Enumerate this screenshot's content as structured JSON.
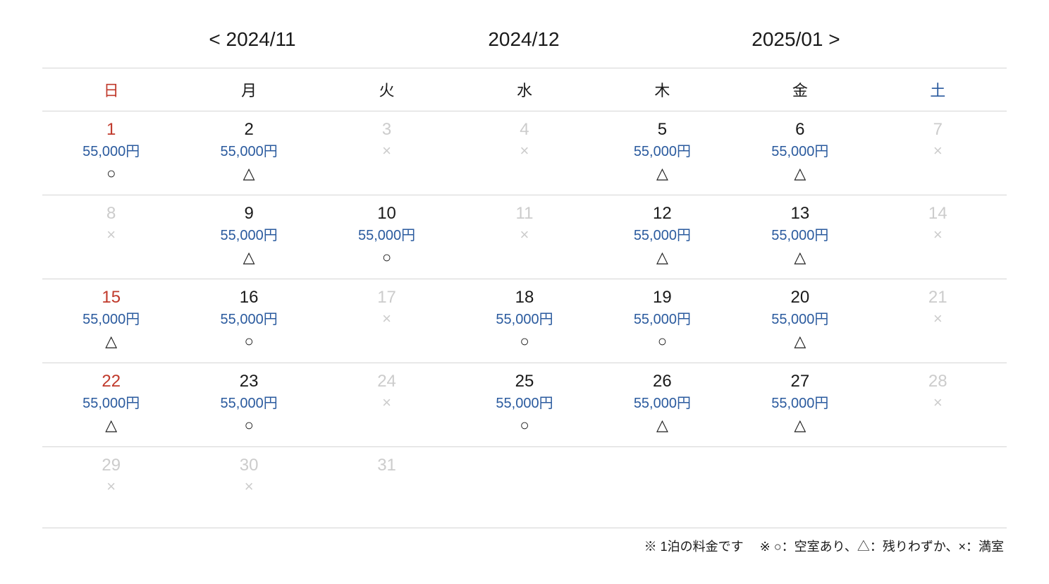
{
  "nav": {
    "prev": "< 2024/11",
    "current": "2024/12",
    "next": "2025/01 >"
  },
  "weekdays": [
    "日",
    "月",
    "火",
    "水",
    "木",
    "金",
    "土"
  ],
  "colors": {
    "sunday": "#c0392b",
    "saturday": "#2a5a9e",
    "price": "#2a5a9e",
    "text": "#1a1a1a",
    "disabled": "#cccccc",
    "border": "#d5d5d5",
    "background": "#ffffff"
  },
  "typography": {
    "nav_fontsize": 28,
    "weekday_fontsize": 22,
    "daynum_fontsize": 24,
    "price_fontsize": 20,
    "status_fontsize": 22,
    "legend_fontsize": 18
  },
  "weeks": [
    [
      {
        "num": "1",
        "price": "55,000円",
        "status": "○",
        "avail": true,
        "sun": true
      },
      {
        "num": "2",
        "price": "55,000円",
        "status": "△",
        "avail": true
      },
      {
        "num": "3",
        "price": "",
        "status": "×",
        "avail": false
      },
      {
        "num": "4",
        "price": "",
        "status": "×",
        "avail": false
      },
      {
        "num": "5",
        "price": "55,000円",
        "status": "△",
        "avail": true
      },
      {
        "num": "6",
        "price": "55,000円",
        "status": "△",
        "avail": true
      },
      {
        "num": "7",
        "price": "",
        "status": "×",
        "avail": false
      }
    ],
    [
      {
        "num": "8",
        "price": "",
        "status": "×",
        "avail": false
      },
      {
        "num": "9",
        "price": "55,000円",
        "status": "△",
        "avail": true
      },
      {
        "num": "10",
        "price": "55,000円",
        "status": "○",
        "avail": true
      },
      {
        "num": "11",
        "price": "",
        "status": "×",
        "avail": false
      },
      {
        "num": "12",
        "price": "55,000円",
        "status": "△",
        "avail": true
      },
      {
        "num": "13",
        "price": "55,000円",
        "status": "△",
        "avail": true
      },
      {
        "num": "14",
        "price": "",
        "status": "×",
        "avail": false
      }
    ],
    [
      {
        "num": "15",
        "price": "55,000円",
        "status": "△",
        "avail": true,
        "sun": true
      },
      {
        "num": "16",
        "price": "55,000円",
        "status": "○",
        "avail": true
      },
      {
        "num": "17",
        "price": "",
        "status": "×",
        "avail": false
      },
      {
        "num": "18",
        "price": "55,000円",
        "status": "○",
        "avail": true
      },
      {
        "num": "19",
        "price": "55,000円",
        "status": "○",
        "avail": true
      },
      {
        "num": "20",
        "price": "55,000円",
        "status": "△",
        "avail": true
      },
      {
        "num": "21",
        "price": "",
        "status": "×",
        "avail": false
      }
    ],
    [
      {
        "num": "22",
        "price": "55,000円",
        "status": "△",
        "avail": true,
        "sun": true
      },
      {
        "num": "23",
        "price": "55,000円",
        "status": "○",
        "avail": true
      },
      {
        "num": "24",
        "price": "",
        "status": "×",
        "avail": false
      },
      {
        "num": "25",
        "price": "55,000円",
        "status": "○",
        "avail": true
      },
      {
        "num": "26",
        "price": "55,000円",
        "status": "△",
        "avail": true
      },
      {
        "num": "27",
        "price": "55,000円",
        "status": "△",
        "avail": true
      },
      {
        "num": "28",
        "price": "",
        "status": "×",
        "avail": false
      }
    ],
    [
      {
        "num": "29",
        "price": "",
        "status": "×",
        "avail": false
      },
      {
        "num": "30",
        "price": "",
        "status": "×",
        "avail": false
      },
      {
        "num": "31",
        "price": "",
        "status": "",
        "avail": false
      },
      {
        "num": "",
        "price": "",
        "status": "",
        "avail": false
      },
      {
        "num": "",
        "price": "",
        "status": "",
        "avail": false
      },
      {
        "num": "",
        "price": "",
        "status": "",
        "avail": false
      },
      {
        "num": "",
        "price": "",
        "status": "",
        "avail": false
      }
    ]
  ],
  "legend": {
    "price_note": "※ 1泊の料金です",
    "status_note": "※ ○：空室あり、△：残りわずか、×：満室"
  }
}
